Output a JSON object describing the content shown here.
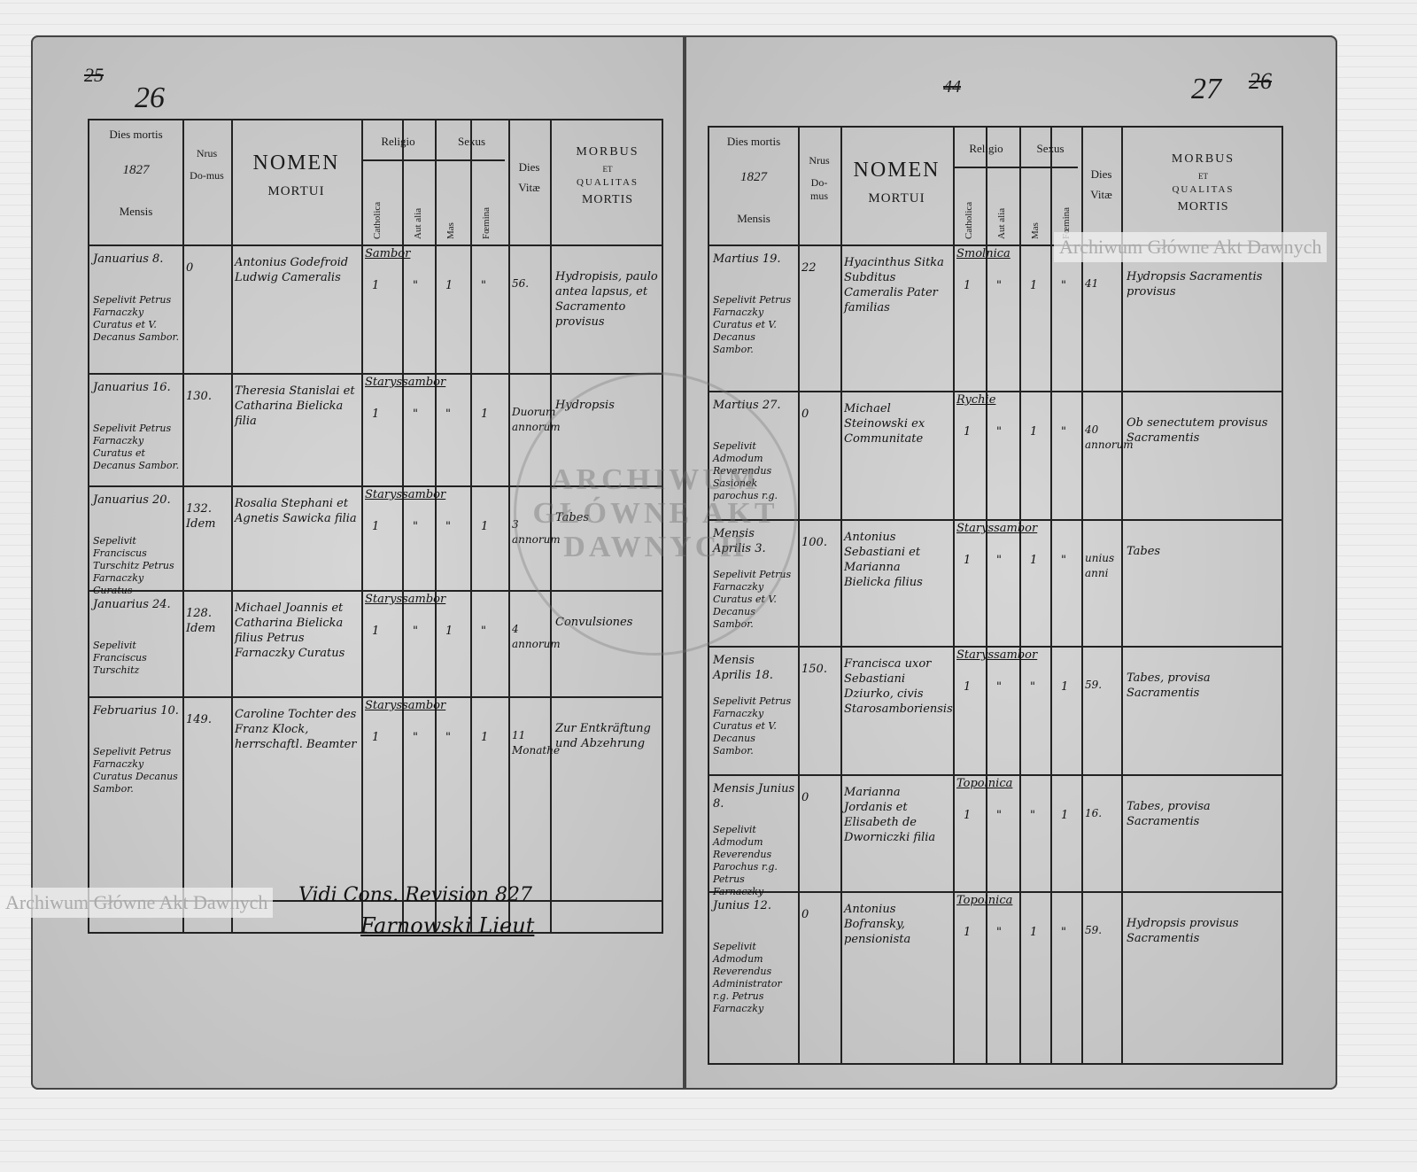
{
  "left_page": {
    "page_number_old": "25",
    "page_number": "26",
    "headers": {
      "dies_mortis": "Dies mortis",
      "year": "1827",
      "mensis": "Mensis",
      "nrus": "Nrus",
      "domus": "Do-mus",
      "nomen": "NOMEN",
      "mortui": "MORTUI",
      "religio": "Religio",
      "catholica": "Catholica",
      "aut_alia": "Aut alia",
      "sexus": "Sexus",
      "mas": "Mas",
      "foemina": "Fœmina",
      "dies": "Dies",
      "vitae": "Vitæ",
      "morbus": "MORBUS",
      "et": "ET",
      "qualitas": "QUALITAS",
      "mortis": "MORTIS"
    },
    "rows": [
      {
        "date": "Januarius 8.",
        "burial": "Sepelivit Petrus Farnaczky Curatus et V. Decanus Sambor.",
        "house": "0",
        "name": "Antonius Godefroid Ludwig Cameralis",
        "place": "Sambor",
        "cath": "1",
        "alia": "\"",
        "mas": "1",
        "foem": "\"",
        "age": "56.",
        "morbus": "Hydropisis, paulo antea lapsus, et Sacramento provisus"
      },
      {
        "date": "Januarius 16.",
        "burial": "Sepelivit Petrus Farnaczky Curatus et Decanus Sambor.",
        "house": "130.",
        "name": "Theresia Stanislai et Catharina Bielicka filia",
        "place": "Staryssambor",
        "cath": "1",
        "alia": "\"",
        "mas": "\"",
        "foem": "1",
        "age": "Duorum annorum",
        "morbus": "Hydropsis"
      },
      {
        "date": "Januarius 20.",
        "burial": "Sepelivit Franciscus Turschitz Petrus Farnaczky Curatus",
        "house": "132. Idem",
        "name": "Rosalia Stephani et Agnetis Sawicka filia",
        "place": "Staryssambor",
        "cath": "1",
        "alia": "\"",
        "mas": "\"",
        "foem": "1",
        "age": "3 annorum",
        "morbus": "Tabes"
      },
      {
        "date": "Januarius 24.",
        "burial": "Sepelivit Franciscus Turschitz",
        "house": "128. Idem",
        "name": "Michael Joannis et Catharina Bielicka filius Petrus Farnaczky Curatus",
        "place": "Staryssambor",
        "cath": "1",
        "alia": "\"",
        "mas": "1",
        "foem": "\"",
        "age": "4 annorum",
        "morbus": "Convulsiones"
      },
      {
        "date": "Februarius 10.",
        "burial": "Sepelivit Petrus Farnaczky Curatus Decanus Sambor.",
        "house": "149.",
        "name": "Caroline Tochter des Franz Klock, herrschaftl. Beamter",
        "place": "Staryssambor",
        "cath": "1",
        "alia": "\"",
        "mas": "\"",
        "foem": "1",
        "age": "11 Monathe",
        "morbus": "Zur Entkräftung und Abzehrung"
      }
    ],
    "signature": {
      "vidi": "Vidi Cons. Revision 827",
      "name": "Farnowski Lieut"
    }
  },
  "right_page": {
    "page_number_old": "26",
    "page_number": "27",
    "folio": "44",
    "rows": [
      {
        "date": "Martius 19.",
        "burial": "Sepelivit Petrus Farnaczky Curatus et V. Decanus Sambor.",
        "house": "22",
        "name": "Hyacinthus Sitka Subditus Cameralis Pater familias",
        "place": "Smolnica",
        "cath": "1",
        "alia": "\"",
        "mas": "1",
        "foem": "\"",
        "age": "41",
        "morbus": "Hydropsis Sacramentis provisus"
      },
      {
        "date": "Martius 27.",
        "burial": "Sepelivit Admodum Reverendus Sasionek parochus r.g.",
        "house": "0",
        "name": "Michael Steinowski ex Communitate",
        "place": "Rychie",
        "cath": "1",
        "alia": "\"",
        "mas": "1",
        "foem": "\"",
        "age": "40 annorum",
        "morbus": "Ob senectutem provisus Sacramentis"
      },
      {
        "date": "Mensis Aprilis 3.",
        "burial": "Sepelivit Petrus Farnaczky Curatus et V. Decanus Sambor.",
        "house": "100.",
        "name": "Antonius Sebastiani et Marianna Bielicka filius",
        "place": "Staryssambor",
        "cath": "1",
        "alia": "\"",
        "mas": "1",
        "foem": "\"",
        "age": "unius anni",
        "morbus": "Tabes"
      },
      {
        "date": "Mensis Aprilis 18.",
        "burial": "Sepelivit Petrus Farnaczky Curatus et V. Decanus Sambor.",
        "house": "150.",
        "name": "Francisca uxor Sebastiani Dziurko, civis Starosamboriensis",
        "place": "Staryssambor",
        "cath": "1",
        "alia": "\"",
        "mas": "\"",
        "foem": "1",
        "age": "59.",
        "morbus": "Tabes, provisa Sacramentis"
      },
      {
        "date": "Mensis Junius 8.",
        "burial": "Sepelivit Admodum Reverendus Parochus r.g. Petrus Farnaczky",
        "house": "0",
        "name": "Marianna Jordanis et Elisabeth de Dworniczki filia",
        "place": "Topolnica",
        "cath": "1",
        "alia": "\"",
        "mas": "\"",
        "foem": "1",
        "age": "16.",
        "morbus": "Tabes, provisa Sacramentis"
      },
      {
        "date": "Junius 12.",
        "burial": "Sepelivit Admodum Reverendus Administrator r.g. Petrus Farnaczky",
        "house": "0",
        "name": "Antonius Bofransky, pensionista",
        "place": "Topolnica",
        "cath": "1",
        "alia": "\"",
        "mas": "1",
        "foem": "\"",
        "age": "59.",
        "morbus": "Hydropsis provisus Sacramentis"
      }
    ]
  },
  "watermarks": {
    "archive": "Archiwum Główne Akt Dawnych",
    "seal": "ARCHIWUM GŁÓWNE AKT DAWNYCH"
  }
}
